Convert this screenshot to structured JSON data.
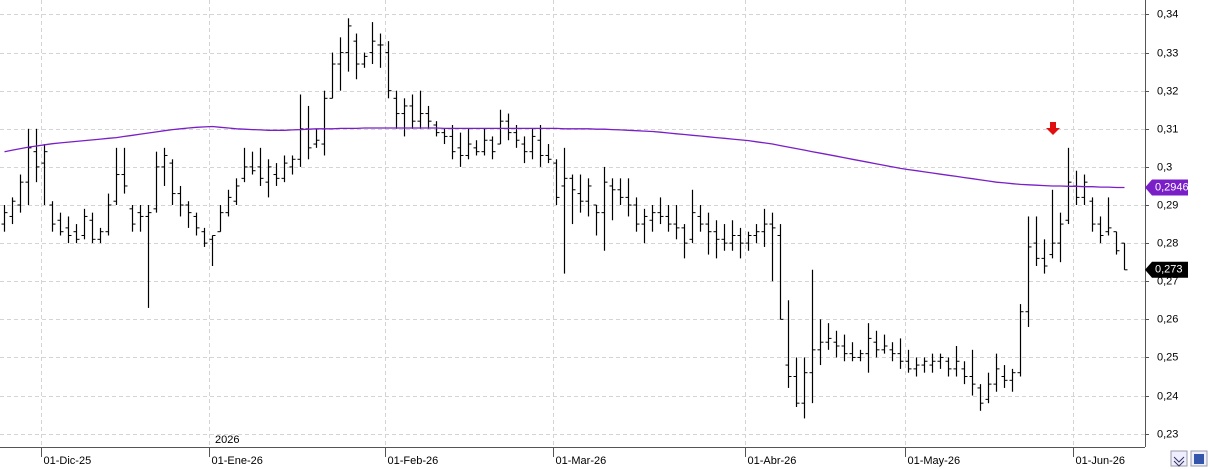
{
  "chart_data": {
    "type": "ohlc",
    "bar_color": "#000000",
    "ylim": [
      0.2265,
      0.3438
    ],
    "yticks": [
      {
        "value": 0.23,
        "label": "0,23"
      },
      {
        "value": 0.24,
        "label": "0,24"
      },
      {
        "value": 0.25,
        "label": "0,25"
      },
      {
        "value": 0.26,
        "label": "0,26"
      },
      {
        "value": 0.27,
        "label": "0,27"
      },
      {
        "value": 0.28,
        "label": "0,28"
      },
      {
        "value": 0.29,
        "label": "0,29"
      },
      {
        "value": 0.3,
        "label": "0,3"
      },
      {
        "value": 0.31,
        "label": "0,31"
      },
      {
        "value": 0.32,
        "label": "0,32"
      },
      {
        "value": 0.33,
        "label": "0,33"
      },
      {
        "value": 0.34,
        "label": "0,34"
      }
    ],
    "grid": true,
    "year_label": "2026",
    "categories": [
      null,
      null,
      null,
      null,
      null,
      "01-Dic-25",
      null,
      null,
      null,
      null,
      null,
      null,
      null,
      null,
      null,
      null,
      null,
      null,
      null,
      null,
      null,
      null,
      null,
      null,
      null,
      null,
      "01-Ene-26",
      null,
      null,
      null,
      null,
      null,
      null,
      null,
      null,
      null,
      null,
      null,
      null,
      null,
      null,
      null,
      null,
      null,
      null,
      null,
      null,
      null,
      "01-Feb-26",
      null,
      null,
      null,
      null,
      null,
      null,
      null,
      null,
      null,
      null,
      null,
      null,
      null,
      null,
      null,
      null,
      null,
      null,
      null,
      null,
      "01-Mar-26",
      null,
      null,
      null,
      null,
      null,
      null,
      null,
      null,
      null,
      null,
      null,
      null,
      null,
      null,
      null,
      null,
      null,
      null,
      null,
      null,
      null,
      null,
      null,
      "01-Abr-26",
      null,
      null,
      null,
      null,
      null,
      null,
      null,
      null,
      null,
      null,
      null,
      null,
      null,
      null,
      null,
      null,
      null,
      null,
      null,
      "01-May-26",
      null,
      null,
      null,
      null,
      null,
      null,
      null,
      null,
      null,
      null,
      null,
      null,
      null,
      null,
      null,
      null,
      null,
      null,
      null,
      null,
      "01-Jun-26",
      null,
      null,
      null,
      null,
      null,
      null
    ],
    "ohlc": [
      [
        0.285,
        0.29,
        0.283,
        0.288
      ],
      [
        0.287,
        0.292,
        0.285,
        0.291
      ],
      [
        0.29,
        0.298,
        0.288,
        0.296
      ],
      [
        0.296,
        0.31,
        0.29,
        0.305
      ],
      [
        0.304,
        0.31,
        0.296,
        0.3
      ],
      [
        0.301,
        0.306,
        0.29,
        0.304
      ],
      [
        0.29,
        0.291,
        0.283,
        0.285
      ],
      [
        0.286,
        0.288,
        0.282,
        0.283
      ],
      [
        0.284,
        0.287,
        0.28,
        0.282
      ],
      [
        0.283,
        0.285,
        0.28,
        0.281
      ],
      [
        0.282,
        0.289,
        0.281,
        0.287
      ],
      [
        0.286,
        0.288,
        0.28,
        0.281
      ],
      [
        0.281,
        0.284,
        0.28,
        0.283
      ],
      [
        0.283,
        0.293,
        0.282,
        0.29
      ],
      [
        0.291,
        0.305,
        0.29,
        0.298
      ],
      [
        0.298,
        0.305,
        0.293,
        0.295
      ],
      [
        0.289,
        0.29,
        0.283,
        0.285
      ],
      [
        0.288,
        0.29,
        0.283,
        0.287
      ],
      [
        0.287,
        0.29,
        0.263,
        0.288
      ],
      [
        0.289,
        0.304,
        0.288,
        0.3
      ],
      [
        0.3,
        0.305,
        0.295,
        0.303
      ],
      [
        0.301,
        0.302,
        0.29,
        0.293
      ],
      [
        0.293,
        0.295,
        0.287,
        0.29
      ],
      [
        0.29,
        0.291,
        0.284,
        0.288
      ],
      [
        0.287,
        0.288,
        0.282,
        0.284
      ],
      [
        0.283,
        0.284,
        0.279,
        0.28
      ],
      [
        0.281,
        0.282,
        0.274,
        0.282
      ],
      [
        0.283,
        0.29,
        0.283,
        0.288
      ],
      [
        0.288,
        0.294,
        0.287,
        0.292
      ],
      [
        0.291,
        0.297,
        0.29,
        0.295
      ],
      [
        0.297,
        0.305,
        0.296,
        0.3
      ],
      [
        0.3,
        0.304,
        0.298,
        0.299
      ],
      [
        0.3,
        0.305,
        0.295,
        0.297
      ],
      [
        0.296,
        0.302,
        0.292,
        0.3
      ],
      [
        0.298,
        0.301,
        0.295,
        0.297
      ],
      [
        0.297,
        0.303,
        0.296,
        0.301
      ],
      [
        0.3,
        0.303,
        0.298,
        0.302
      ],
      [
        0.302,
        0.319,
        0.3,
        0.31
      ],
      [
        0.31,
        0.316,
        0.302,
        0.305
      ],
      [
        0.306,
        0.31,
        0.305,
        0.307
      ],
      [
        0.306,
        0.32,
        0.303,
        0.318
      ],
      [
        0.318,
        0.33,
        0.318,
        0.327
      ],
      [
        0.327,
        0.334,
        0.32,
        0.33
      ],
      [
        0.33,
        0.339,
        0.325,
        0.337
      ],
      [
        0.333,
        0.335,
        0.323,
        0.327
      ],
      [
        0.327,
        0.33,
        0.326,
        0.329
      ],
      [
        0.33,
        0.338,
        0.327,
        0.333
      ],
      [
        0.332,
        0.335,
        0.326,
        0.332
      ],
      [
        0.33,
        0.333,
        0.318,
        0.32
      ],
      [
        0.318,
        0.32,
        0.31,
        0.314
      ],
      [
        0.314,
        0.318,
        0.308,
        0.316
      ],
      [
        0.316,
        0.319,
        0.31,
        0.312
      ],
      [
        0.312,
        0.32,
        0.31,
        0.314
      ],
      [
        0.314,
        0.316,
        0.31,
        0.312
      ],
      [
        0.311,
        0.312,
        0.308,
        0.309
      ],
      [
        0.309,
        0.31,
        0.306,
        0.308
      ],
      [
        0.308,
        0.311,
        0.302,
        0.304
      ],
      [
        0.305,
        0.309,
        0.3,
        0.303
      ],
      [
        0.303,
        0.31,
        0.302,
        0.306
      ],
      [
        0.305,
        0.307,
        0.303,
        0.304
      ],
      [
        0.304,
        0.31,
        0.303,
        0.307
      ],
      [
        0.307,
        0.308,
        0.302,
        0.304
      ],
      [
        0.306,
        0.315,
        0.306,
        0.312
      ],
      [
        0.312,
        0.314,
        0.307,
        0.309
      ],
      [
        0.309,
        0.311,
        0.305,
        0.307
      ],
      [
        0.306,
        0.308,
        0.301,
        0.304
      ],
      [
        0.304,
        0.31,
        0.302,
        0.308
      ],
      [
        0.307,
        0.311,
        0.3,
        0.303
      ],
      [
        0.303,
        0.306,
        0.301,
        0.302
      ],
      [
        0.301,
        0.302,
        0.29,
        0.292
      ],
      [
        0.295,
        0.305,
        0.272,
        0.297
      ],
      [
        0.297,
        0.298,
        0.285,
        0.294
      ],
      [
        0.293,
        0.298,
        0.288,
        0.291
      ],
      [
        0.291,
        0.297,
        0.287,
        0.295
      ],
      [
        0.29,
        0.29,
        0.282,
        0.288
      ],
      [
        0.288,
        0.3,
        0.278,
        0.296
      ],
      [
        0.295,
        0.297,
        0.286,
        0.294
      ],
      [
        0.294,
        0.297,
        0.29,
        0.292
      ],
      [
        0.292,
        0.297,
        0.287,
        0.29
      ],
      [
        0.29,
        0.292,
        0.283,
        0.285
      ],
      [
        0.285,
        0.289,
        0.28,
        0.287
      ],
      [
        0.286,
        0.29,
        0.283,
        0.288
      ],
      [
        0.288,
        0.292,
        0.285,
        0.287
      ],
      [
        0.287,
        0.29,
        0.283,
        0.285
      ],
      [
        0.285,
        0.29,
        0.281,
        0.284
      ],
      [
        0.284,
        0.285,
        0.276,
        0.28
      ],
      [
        0.281,
        0.294,
        0.28,
        0.288
      ],
      [
        0.287,
        0.29,
        0.283,
        0.285
      ],
      [
        0.285,
        0.288,
        0.277,
        0.283
      ],
      [
        0.283,
        0.286,
        0.276,
        0.281
      ],
      [
        0.281,
        0.285,
        0.278,
        0.28
      ],
      [
        0.28,
        0.286,
        0.278,
        0.282
      ],
      [
        0.282,
        0.284,
        0.276,
        0.28
      ],
      [
        0.28,
        0.283,
        0.278,
        0.282
      ],
      [
        0.282,
        0.285,
        0.28,
        0.283
      ],
      [
        0.283,
        0.289,
        0.279,
        0.285
      ],
      [
        0.285,
        0.288,
        0.27,
        0.284
      ],
      [
        0.282,
        0.285,
        0.26,
        0.26
      ],
      [
        0.248,
        0.265,
        0.242,
        0.245
      ],
      [
        0.245,
        0.25,
        0.237,
        0.238
      ],
      [
        0.238,
        0.25,
        0.234,
        0.246
      ],
      [
        0.246,
        0.273,
        0.238,
        0.252
      ],
      [
        0.252,
        0.26,
        0.248,
        0.254
      ],
      [
        0.254,
        0.259,
        0.252,
        0.255
      ],
      [
        0.254,
        0.257,
        0.25,
        0.253
      ],
      [
        0.253,
        0.256,
        0.249,
        0.251
      ],
      [
        0.251,
        0.254,
        0.249,
        0.25
      ],
      [
        0.25,
        0.252,
        0.249,
        0.251
      ],
      [
        0.251,
        0.259,
        0.246,
        0.255
      ],
      [
        0.254,
        0.257,
        0.25,
        0.252
      ],
      [
        0.252,
        0.256,
        0.251,
        0.253
      ],
      [
        0.252,
        0.254,
        0.249,
        0.251
      ],
      [
        0.251,
        0.255,
        0.247,
        0.249
      ],
      [
        0.249,
        0.252,
        0.246,
        0.247
      ],
      [
        0.247,
        0.25,
        0.245,
        0.248
      ],
      [
        0.248,
        0.25,
        0.246,
        0.249
      ],
      [
        0.248,
        0.251,
        0.246,
        0.249
      ],
      [
        0.249,
        0.251,
        0.247,
        0.25
      ],
      [
        0.249,
        0.25,
        0.245,
        0.247
      ],
      [
        0.247,
        0.253,
        0.245,
        0.249
      ],
      [
        0.247,
        0.249,
        0.243,
        0.245
      ],
      [
        0.245,
        0.252,
        0.24,
        0.243
      ],
      [
        0.242,
        0.243,
        0.236,
        0.238
      ],
      [
        0.239,
        0.246,
        0.238,
        0.243
      ],
      [
        0.243,
        0.251,
        0.241,
        0.247
      ],
      [
        0.245,
        0.248,
        0.242,
        0.244
      ],
      [
        0.244,
        0.247,
        0.241,
        0.246
      ],
      [
        0.246,
        0.264,
        0.245,
        0.262
      ],
      [
        0.262,
        0.287,
        0.258,
        0.279
      ],
      [
        0.28,
        0.287,
        0.274,
        0.276
      ],
      [
        0.276,
        0.281,
        0.272,
        0.274
      ],
      [
        0.277,
        0.294,
        0.276,
        0.28
      ],
      [
        0.28,
        0.288,
        0.275,
        0.285
      ],
      [
        0.286,
        0.305,
        0.285,
        0.296
      ],
      [
        0.295,
        0.299,
        0.29,
        0.292
      ],
      [
        0.292,
        0.298,
        0.29,
        0.296
      ],
      [
        0.291,
        0.292,
        0.283,
        0.285
      ],
      [
        0.285,
        0.287,
        0.28,
        0.282
      ],
      [
        0.283,
        0.292,
        0.282,
        0.284
      ],
      [
        0.283,
        0.283,
        0.277,
        0.278
      ],
      [
        0.28,
        0.28,
        0.273,
        0.273
      ]
    ],
    "ma": {
      "color": "#7a1fc8",
      "values": [
        0.304,
        0.3044,
        0.3048,
        0.3052,
        0.3055,
        0.3058,
        0.3061,
        0.3063,
        0.3065,
        0.3067,
        0.3069,
        0.3071,
        0.3073,
        0.3075,
        0.3077,
        0.308,
        0.3083,
        0.3086,
        0.3089,
        0.3092,
        0.3095,
        0.3098,
        0.31,
        0.3102,
        0.3104,
        0.3105,
        0.3106,
        0.3104,
        0.3102,
        0.31,
        0.3099,
        0.3098,
        0.3097,
        0.3096,
        0.3096,
        0.3096,
        0.3097,
        0.3098,
        0.3099,
        0.31,
        0.31,
        0.31,
        0.3101,
        0.3101,
        0.3101,
        0.3102,
        0.3102,
        0.3102,
        0.3102,
        0.3102,
        0.3102,
        0.3102,
        0.3102,
        0.3102,
        0.3102,
        0.3101,
        0.3101,
        0.3101,
        0.3101,
        0.3101,
        0.3101,
        0.3101,
        0.3101,
        0.3101,
        0.3101,
        0.3101,
        0.3101,
        0.3101,
        0.3101,
        0.3101,
        0.31,
        0.31,
        0.31,
        0.31,
        0.3099,
        0.3099,
        0.3098,
        0.3097,
        0.3096,
        0.3095,
        0.3094,
        0.3093,
        0.3091,
        0.3089,
        0.3087,
        0.3085,
        0.3083,
        0.3081,
        0.3079,
        0.3077,
        0.3075,
        0.3073,
        0.3071,
        0.3069,
        0.3066,
        0.3063,
        0.306,
        0.3056,
        0.3052,
        0.3048,
        0.3044,
        0.304,
        0.3036,
        0.3032,
        0.3028,
        0.3024,
        0.302,
        0.3016,
        0.3012,
        0.3008,
        0.3004,
        0.3,
        0.2996,
        0.2993,
        0.299,
        0.2987,
        0.2984,
        0.2981,
        0.2978,
        0.2975,
        0.2972,
        0.2969,
        0.2966,
        0.2963,
        0.296,
        0.2958,
        0.2956,
        0.2954,
        0.2953,
        0.2952,
        0.2951,
        0.295,
        0.295,
        0.2949,
        0.2949,
        0.2948,
        0.2948,
        0.2947,
        0.2947,
        0.2946,
        0.2946
      ]
    },
    "ma_last": {
      "value": 0.2946,
      "label": "0,2946"
    },
    "last_price": {
      "value": 0.273,
      "label": "0,273"
    }
  }
}
